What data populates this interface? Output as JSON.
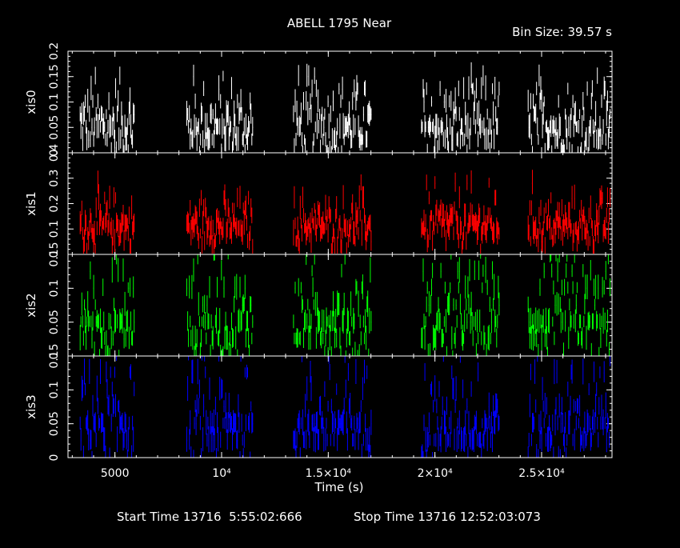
{
  "header": {
    "title": "ABELL 1795 Near",
    "bin_size": "Bin Size: 39.57 s"
  },
  "footer": {
    "start_time": "Start Time 13716  5:55:02:666",
    "stop_time": "Stop Time 13716 12:52:03:073"
  },
  "chart_data": {
    "type": "line",
    "xlabel": "Time (s)",
    "xlim": [
      2800,
      28300
    ],
    "x_ticks": [
      {
        "value": 5000,
        "label": "5000"
      },
      {
        "value": 10000,
        "label": "10⁴"
      },
      {
        "value": 15000,
        "label": "1.5×10⁴"
      },
      {
        "value": 20000,
        "label": "2×10⁴"
      },
      {
        "value": 25000,
        "label": "2.5×10⁴"
      }
    ],
    "segments": [
      [
        3350,
        5900
      ],
      [
        8350,
        11450
      ],
      [
        13350,
        17000
      ],
      [
        19350,
        23000
      ],
      [
        24350,
        28200
      ]
    ],
    "bin_size_s": 39.57,
    "panels": [
      {
        "name": "xis0",
        "color": "#ffffff",
        "ylim": [
          0,
          0.2
        ],
        "ticks": [
          "0",
          "0.05",
          "0.1",
          "0.15",
          "0.2"
        ],
        "tick_values": [
          0,
          0.05,
          0.1,
          0.15,
          0.2
        ],
        "levels": [
          0,
          0.025,
          0.05,
          0.075,
          0.1,
          0.125,
          0.15
        ],
        "weights": [
          10,
          22,
          28,
          14,
          10,
          7,
          3
        ]
      },
      {
        "name": "xis1",
        "color": "#ff0000",
        "ylim": [
          0,
          0.4
        ],
        "ticks": [
          "0",
          "0.1",
          "0.2",
          "0.3",
          "0.4"
        ],
        "tick_values": [
          0,
          0.1,
          0.2,
          0.3,
          0.4
        ],
        "levels": [
          0.02,
          0.05,
          0.08,
          0.1,
          0.12,
          0.15,
          0.18,
          0.22,
          0.28
        ],
        "weights": [
          4,
          8,
          14,
          18,
          16,
          12,
          8,
          4,
          2
        ]
      },
      {
        "name": "xis2",
        "color": "#00ff00",
        "ylim": [
          0,
          0.15
        ],
        "ticks": [
          "0",
          "0.05",
          "0.1",
          "0.15"
        ],
        "tick_values": [
          0,
          0.05,
          0.1,
          0.15
        ],
        "levels": [
          0,
          0.025,
          0.05,
          0.075,
          0.1,
          0.125,
          0.15
        ],
        "weights": [
          8,
          24,
          30,
          14,
          10,
          6,
          3
        ]
      },
      {
        "name": "xis3",
        "color": "#0000ff",
        "ylim": [
          0,
          0.15
        ],
        "ticks": [
          "0",
          "0.05",
          "0.1",
          "0.15"
        ],
        "tick_values": [
          0,
          0.05,
          0.1,
          0.15
        ],
        "levels": [
          0,
          0.025,
          0.05,
          0.075,
          0.1,
          0.125,
          0.15
        ],
        "weights": [
          8,
          24,
          30,
          14,
          10,
          6,
          3
        ]
      }
    ]
  }
}
